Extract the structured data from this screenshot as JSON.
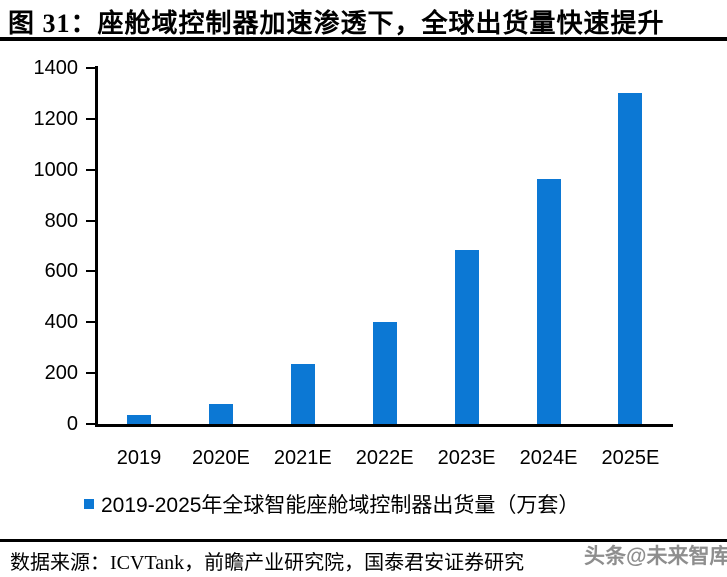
{
  "title": "图 31：座舱域控制器加速渗透下，全球出货量快速提升",
  "chart_data": {
    "type": "bar",
    "title": "图 31：座舱域控制器加速渗透下，全球出货量快速提升",
    "categories": [
      "2019",
      "2020E",
      "2021E",
      "2022E",
      "2023E",
      "2024E",
      "2025E"
    ],
    "values": [
      35,
      80,
      235,
      400,
      685,
      965,
      1300
    ],
    "series_name": "2019-2025年全球智能座舱域控制器出货量（万套）",
    "xlabel": "",
    "ylabel": "",
    "ylim": [
      0,
      1400
    ],
    "yticks": [
      0,
      200,
      400,
      600,
      800,
      1000,
      1200,
      1400
    ],
    "grid": false,
    "legend_position": "bottom",
    "bar_color": "#0c78d4"
  },
  "legend": {
    "label": "2019-2025年全球智能座舱域控制器出货量（万套）"
  },
  "footer": {
    "source_label": "数据来源：ICVTank，前瞻产业研究院，国泰君安证券研究",
    "watermark": "头条@未来智库"
  },
  "colors": {
    "bar": "#0c78d4",
    "rule": "#000000",
    "text": "#000000",
    "watermark": "#8e8e8e"
  }
}
